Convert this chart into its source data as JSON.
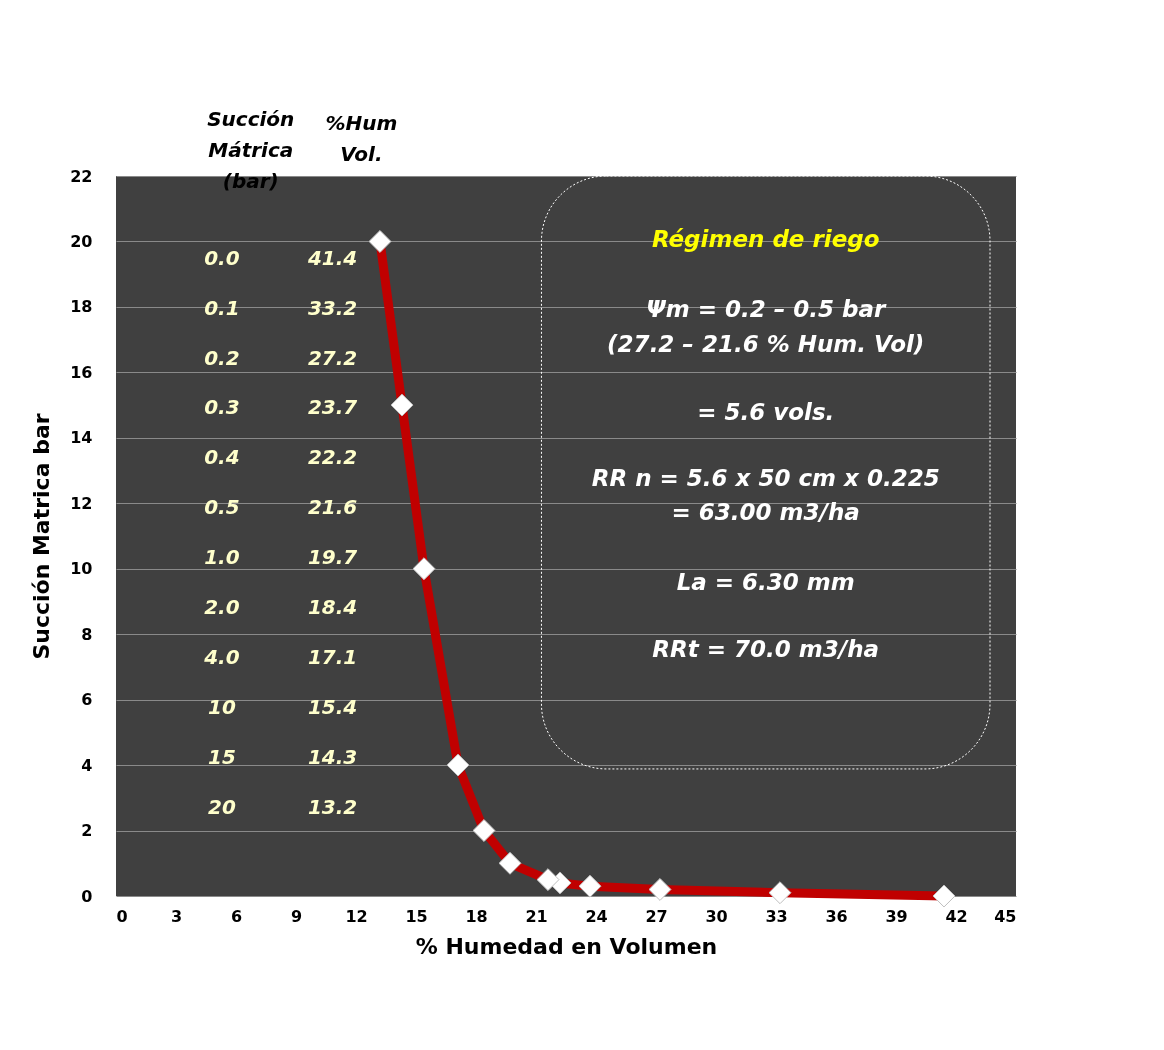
{
  "chart_data": {
    "type": "line",
    "xlabel": "% Humedad en Volumen",
    "ylabel": "Succión Matrica   bar",
    "x": [
      41.4,
      33.2,
      27.2,
      23.7,
      22.2,
      21.6,
      19.7,
      18.4,
      17.1,
      15.4,
      14.3,
      13.2
    ],
    "series": [
      {
        "color": "#c00000",
        "values": [
          0,
          0.1,
          0.2,
          0.3,
          0.4,
          0.5,
          1,
          2,
          4,
          10,
          15,
          20
        ]
      }
    ],
    "xlim": [
      0,
      45
    ],
    "xticks": [
      0,
      3,
      6,
      9,
      12,
      15,
      18,
      21,
      24,
      27,
      30,
      33,
      36,
      39,
      42,
      45
    ],
    "ylim": [
      0,
      22
    ],
    "yticks": [
      0,
      2,
      4,
      6,
      8,
      10,
      12,
      14,
      16,
      18,
      20,
      22
    ],
    "grid": "y",
    "marker": "diamond",
    "line_style": "solid",
    "annotations": [
      "Succión Mátrica (bar)",
      "%Hum Vol.",
      "0.0",
      "41.4",
      "0.1",
      "33.2",
      "0.2",
      "27.2",
      "0.3",
      "23.7",
      "0.4",
      "22.2",
      "0.5",
      "21.6",
      "1.0",
      "19.7",
      "2.0",
      "18.4",
      "4.0",
      "17.1",
      "10",
      "15.4",
      "15",
      "14.3",
      "20",
      "13.2",
      "Régimen de riego",
      "Ψm = 0.2 – 0.5 bar",
      "(27.2 – 21.6 % Hum. Vol)",
      "= 5.6 vols.",
      "RR n = 5.6 x 50 cm x 0.225",
      "= 63.00 m3/ha",
      "La = 6.30 mm",
      "RRt = 70.0 m3/ha"
    ]
  }
}
